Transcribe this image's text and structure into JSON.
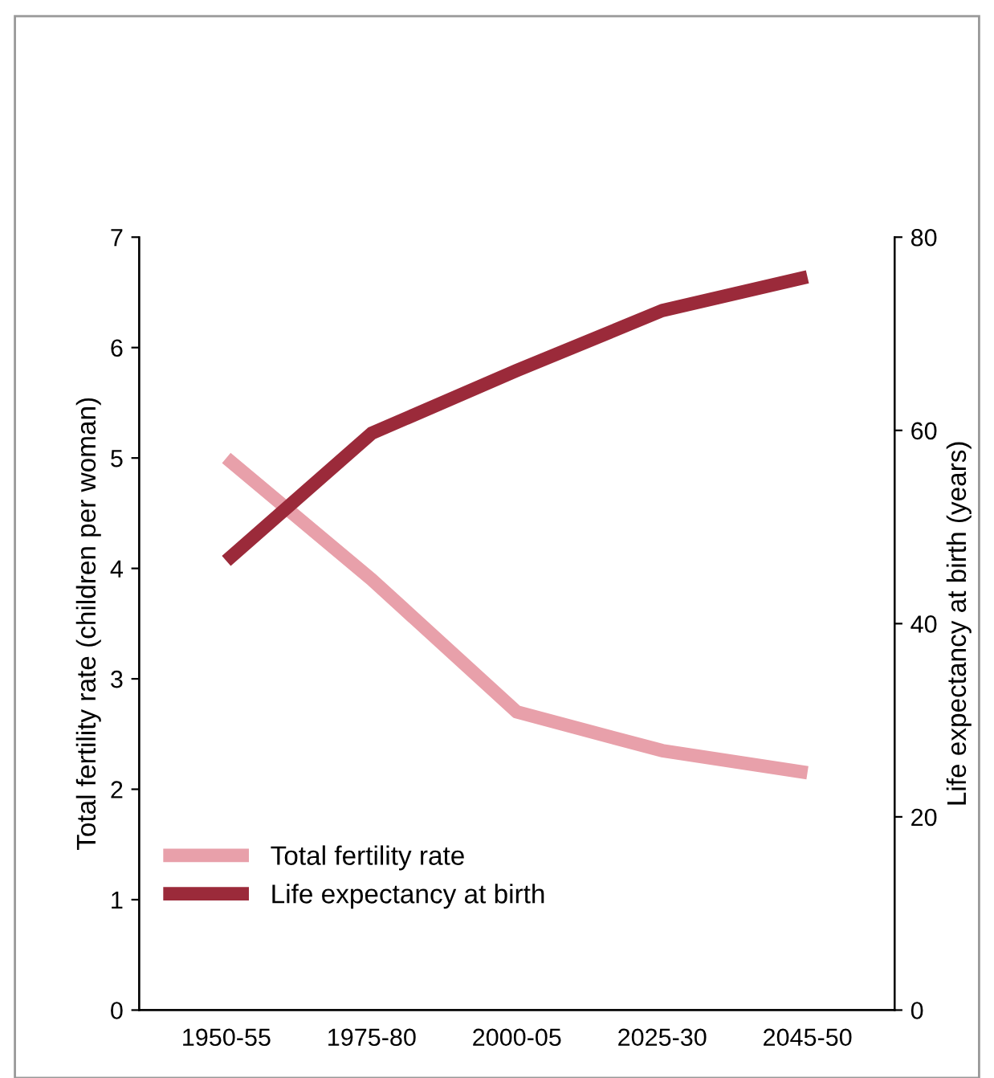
{
  "chart_data": {
    "type": "line",
    "categories": [
      "1950-55",
      "1975-80",
      "2000-05",
      "2025-30",
      "2045-50"
    ],
    "ylabel": "Total fertility rate (children per woman)",
    "y2label": "Life expectancy at birth (years)",
    "ylim": [
      0,
      7
    ],
    "yticks": [
      0,
      1,
      2,
      3,
      4,
      5,
      6,
      7
    ],
    "y2lim": [
      0,
      80
    ],
    "y2ticks": [
      0,
      20,
      40,
      60,
      80
    ],
    "legend": "bottom left",
    "grid": false,
    "marker": "none",
    "line_style": "solid",
    "series": [
      {
        "name": "Total fertility rate",
        "color": "#e8a0aa",
        "values": [
          5.0,
          3.9,
          2.7,
          2.35,
          2.15
        ]
      },
      {
        "name": "Life expectancy at birth",
        "color": "#9b2a3a",
        "axis": "y2",
        "values": [
          46.5,
          59.7,
          66.2,
          72.4,
          75.9
        ]
      }
    ]
  }
}
